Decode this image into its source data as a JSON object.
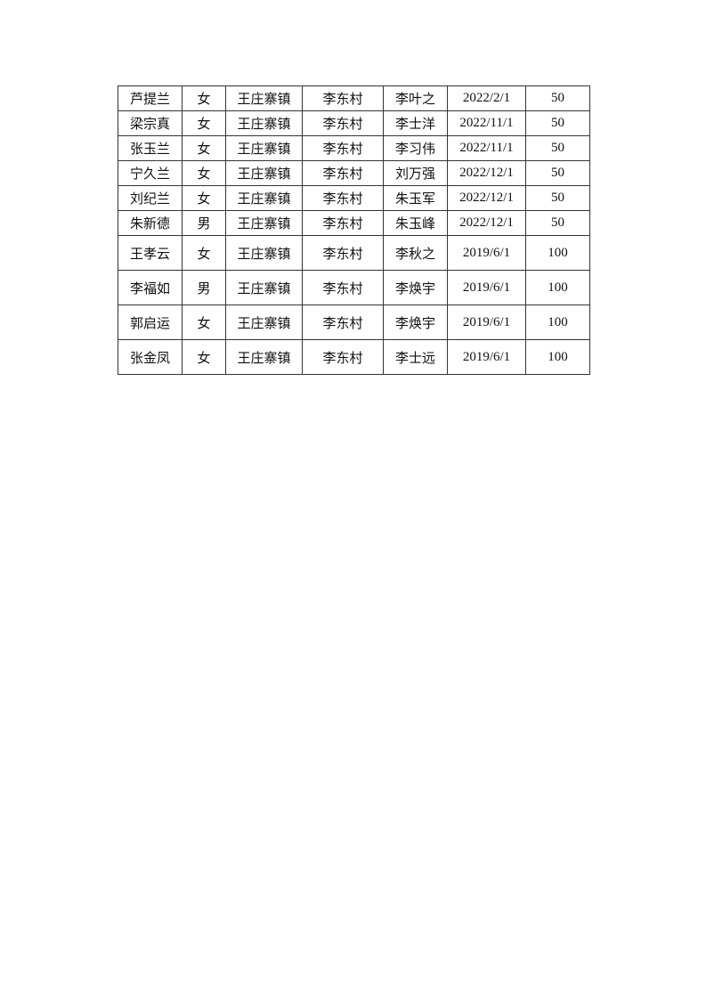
{
  "table": {
    "rows": [
      [
        "芦提兰",
        "女",
        "王庄寨镇",
        "李东村",
        "李叶之",
        "2022/2/1",
        "50"
      ],
      [
        "梁宗真",
        "女",
        "王庄寨镇",
        "李东村",
        "李士洋",
        "2022/11/1",
        "50"
      ],
      [
        "张玉兰",
        "女",
        "王庄寨镇",
        "李东村",
        "李习伟",
        "2022/11/1",
        "50"
      ],
      [
        "宁久兰",
        "女",
        "王庄寨镇",
        "李东村",
        "刘万强",
        "2022/12/1",
        "50"
      ],
      [
        "刘纪兰",
        "女",
        "王庄寨镇",
        "李东村",
        "朱玉军",
        "2022/12/1",
        "50"
      ],
      [
        "朱新德",
        "男",
        "王庄寨镇",
        "李东村",
        "朱玉峰",
        "2022/12/1",
        "50"
      ],
      [
        "王孝云",
        "女",
        "王庄寨镇",
        "李东村",
        "李秋之",
        "2019/6/1",
        "100"
      ],
      [
        "李福如",
        "男",
        "王庄寨镇",
        "李东村",
        "李焕宇",
        "2019/6/1",
        "100"
      ],
      [
        "郭启运",
        "女",
        "王庄寨镇",
        "李东村",
        "李焕宇",
        "2019/6/1",
        "100"
      ],
      [
        "张金凤",
        "女",
        "王庄寨镇",
        "李东村",
        "李士远",
        "2019/6/1",
        "100"
      ]
    ]
  }
}
